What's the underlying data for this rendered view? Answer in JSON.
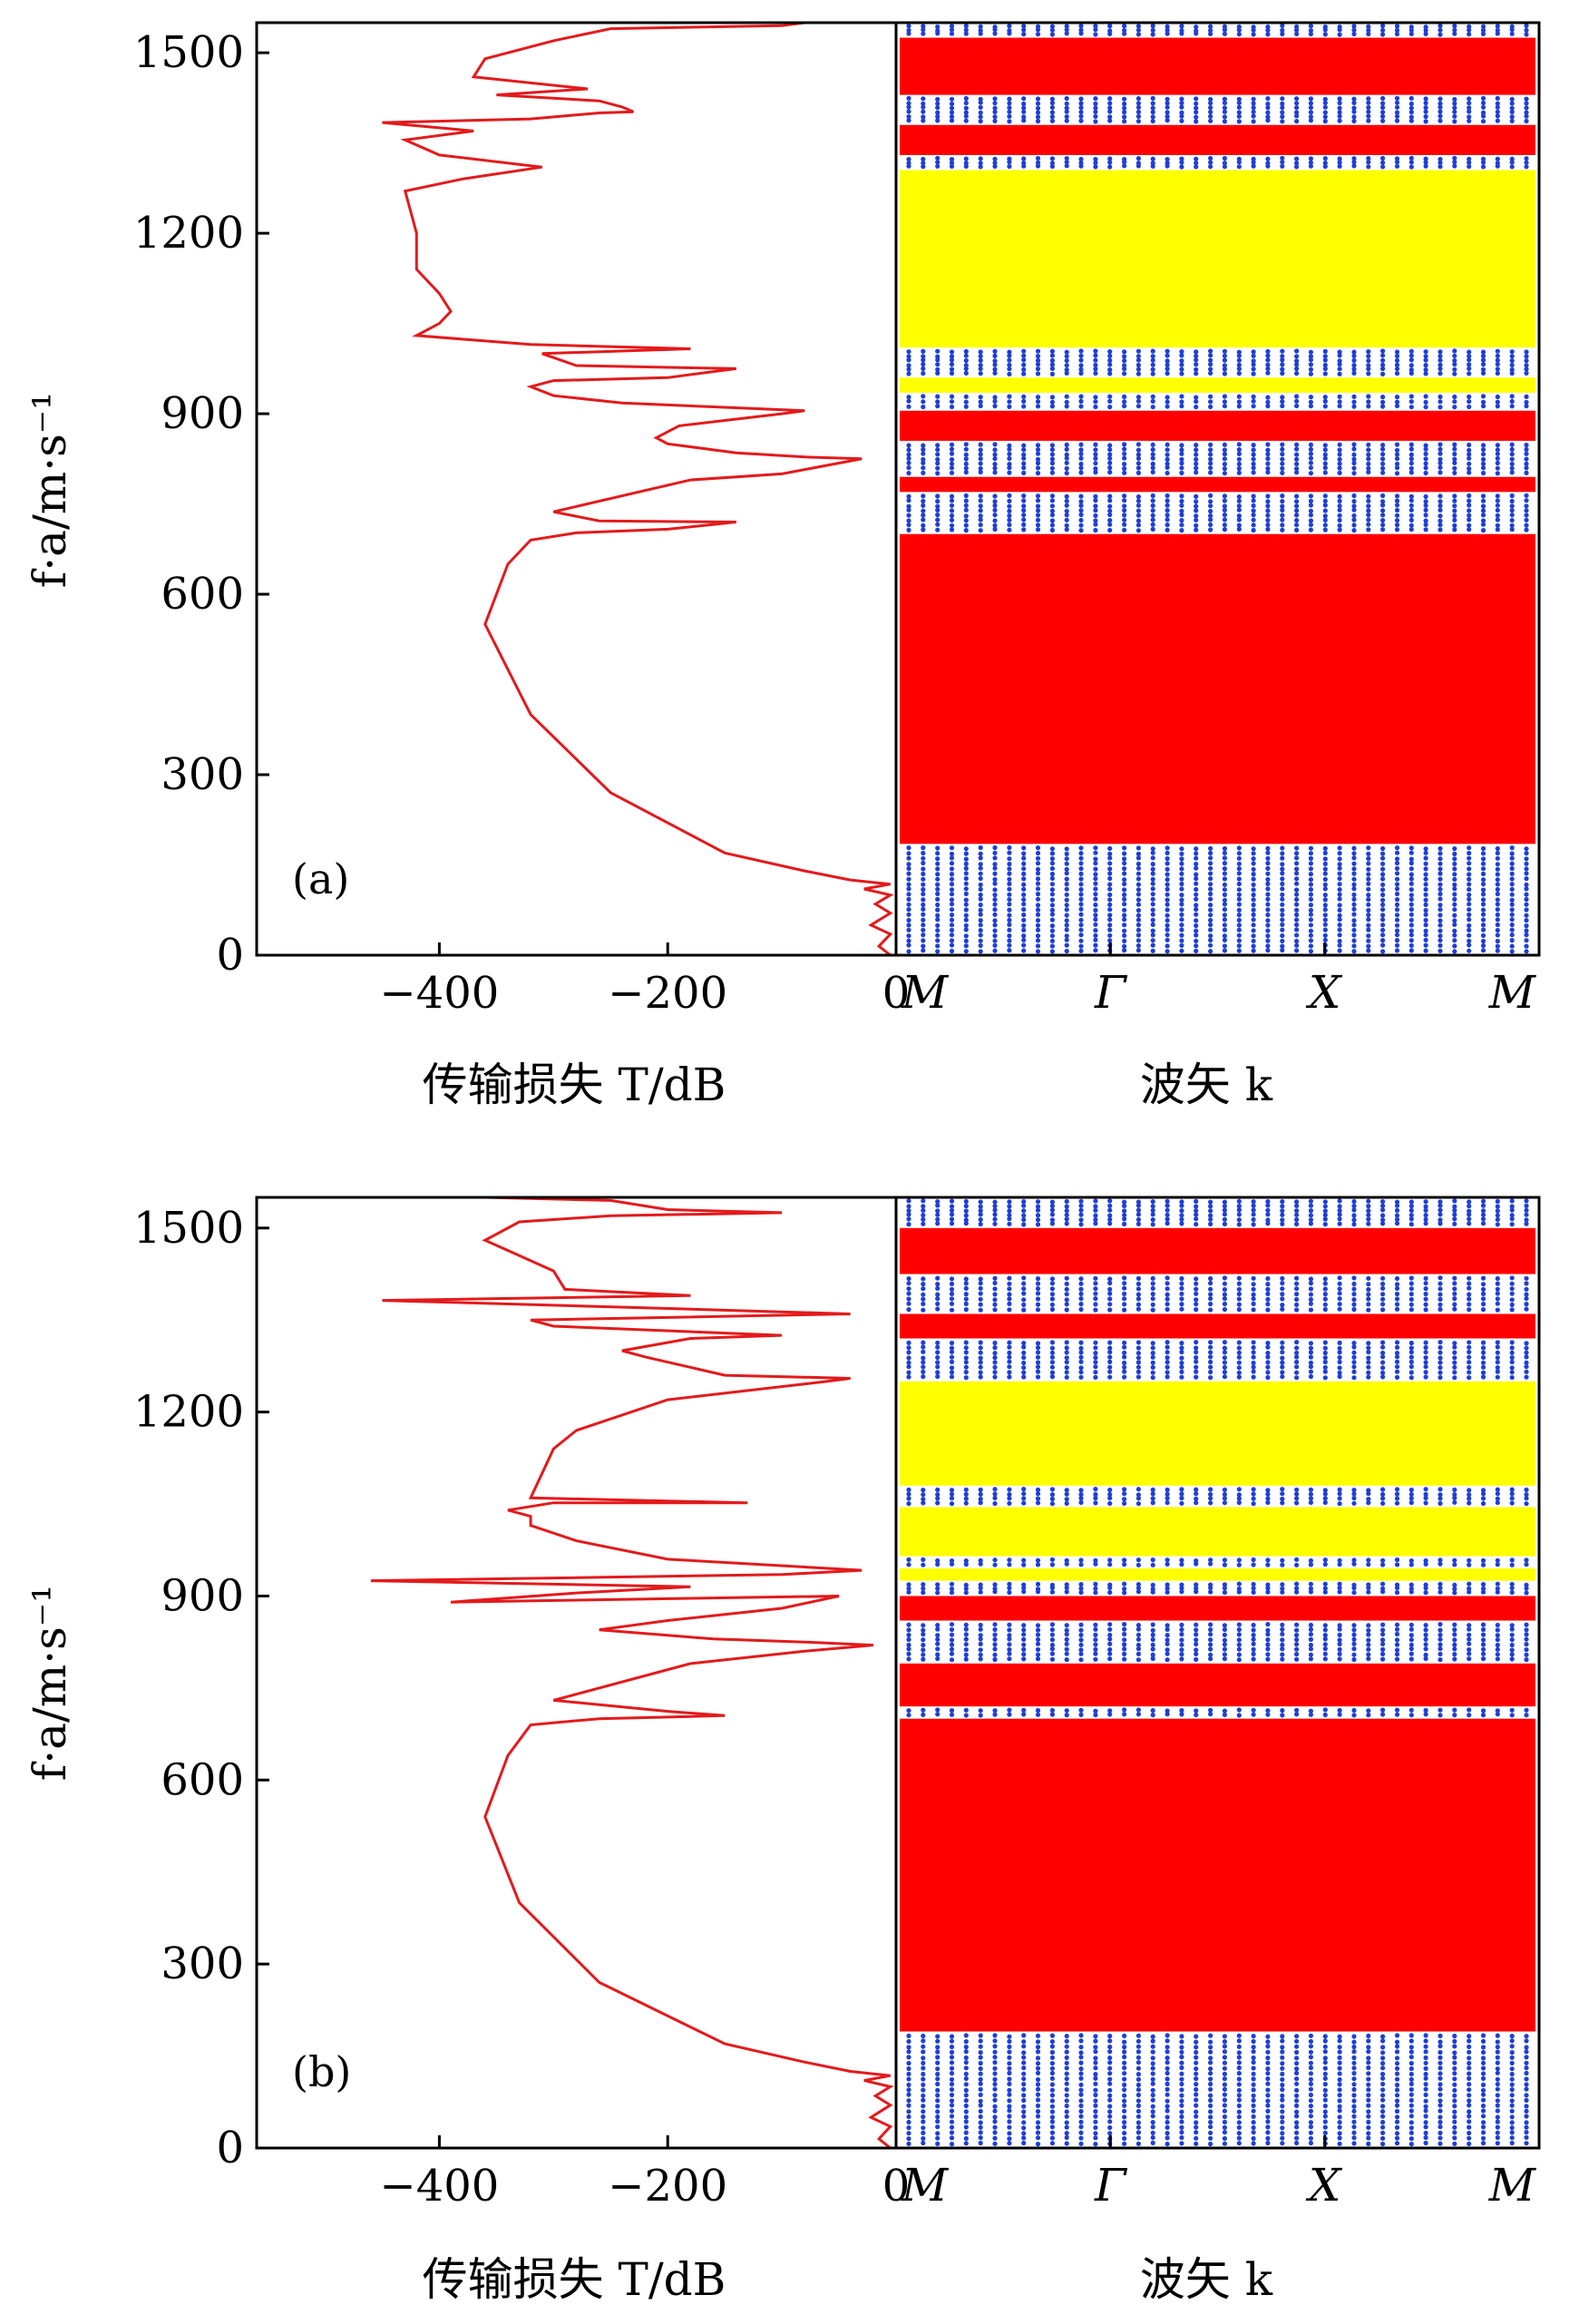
{
  "colors": {
    "transmission_line": "#e31a1c",
    "complete_band_gap": "#ff0000",
    "directional_gap": "#ffff00",
    "band_dots": "#1f3fd6",
    "axis": "#000000"
  },
  "chart_data": [
    {
      "panel": "a",
      "panel_label": "(a)",
      "type": "line",
      "left": {
        "xlabel": "传输损失 T/dB",
        "xlim": [
          -560,
          0
        ],
        "xticks": [
          -400,
          -200,
          0
        ],
        "xtick_labels": [
          "−400",
          "−200",
          "0"
        ],
        "series": [
          {
            "points": [
              [
                -5,
                0
              ],
              [
                -15,
                15
              ],
              [
                -5,
                35
              ],
              [
                -22,
                50
              ],
              [
                -5,
                70
              ],
              [
                -18,
                85
              ],
              [
                -5,
                100
              ],
              [
                -28,
                110
              ],
              [
                -5,
                118
              ],
              [
                -40,
                125
              ],
              [
                -80,
                140
              ],
              [
                -150,
                170
              ],
              [
                -250,
                270
              ],
              [
                -320,
                400
              ],
              [
                -360,
                550
              ],
              [
                -340,
                650
              ],
              [
                -320,
                690
              ],
              [
                -280,
                702
              ],
              [
                -200,
                708
              ],
              [
                -140,
                720
              ],
              [
                -260,
                722
              ],
              [
                -300,
                737
              ],
              [
                -180,
                790
              ],
              [
                -100,
                800
              ],
              [
                -50,
                818
              ],
              [
                -30,
                825
              ],
              [
                -80,
                828
              ],
              [
                -140,
                835
              ],
              [
                -200,
                850
              ],
              [
                -210,
                860
              ],
              [
                -190,
                880
              ],
              [
                -100,
                900
              ],
              [
                -80,
                905
              ],
              [
                -240,
                918
              ],
              [
                -300,
                930
              ],
              [
                -320,
                945
              ],
              [
                -300,
                955
              ],
              [
                -200,
                960
              ],
              [
                -140,
                975
              ],
              [
                -280,
                980
              ],
              [
                -310,
                1000
              ],
              [
                -180,
                1008
              ],
              [
                -320,
                1015
              ],
              [
                -420,
                1030
              ],
              [
                -400,
                1050
              ],
              [
                -390,
                1070
              ],
              [
                -400,
                1100
              ],
              [
                -420,
                1140
              ],
              [
                -420,
                1200
              ],
              [
                -430,
                1270
              ],
              [
                -380,
                1290
              ],
              [
                -310,
                1310
              ],
              [
                -400,
                1330
              ],
              [
                -430,
                1355
              ],
              [
                -370,
                1370
              ],
              [
                -450,
                1384
              ],
              [
                -320,
                1390
              ],
              [
                -260,
                1400
              ],
              [
                -230,
                1402
              ],
              [
                -240,
                1410
              ],
              [
                -260,
                1420
              ],
              [
                -350,
                1430
              ],
              [
                -270,
                1440
              ],
              [
                -370,
                1460
              ],
              [
                -360,
                1490
              ],
              [
                -300,
                1520
              ],
              [
                -250,
                1540
              ],
              [
                -100,
                1545
              ],
              [
                -80,
                1550
              ]
            ]
          }
        ]
      },
      "right": {
        "xlabel": "波矢 k",
        "kpoints": [
          "M",
          "Γ",
          "X",
          "M"
        ],
        "complete_gaps": [
          [
            185,
            700
          ],
          [
            770,
            795
          ],
          [
            855,
            905
          ],
          [
            1330,
            1380
          ],
          [
            1430,
            1525
          ]
        ],
        "directional_gaps": [
          [
            1010,
            1305
          ],
          [
            935,
            960
          ]
        ]
      },
      "ylabel": "f·a/m·s⁻¹",
      "ylim": [
        0,
        1550
      ],
      "yticks": [
        0,
        300,
        600,
        900,
        1200,
        1500
      ],
      "ytick_labels": [
        "0",
        "300",
        "600",
        "900",
        "1200",
        "1500"
      ]
    },
    {
      "panel": "b",
      "panel_label": "(b)",
      "type": "line",
      "left": {
        "xlabel": "传输损失 T/dB",
        "xlim": [
          -560,
          0
        ],
        "xticks": [
          -400,
          -200,
          0
        ],
        "xtick_labels": [
          "−400",
          "−200",
          "0"
        ],
        "series": [
          {
            "points": [
              [
                -5,
                0
              ],
              [
                -15,
                15
              ],
              [
                -5,
                35
              ],
              [
                -22,
                50
              ],
              [
                -5,
                70
              ],
              [
                -18,
                85
              ],
              [
                -5,
                100
              ],
              [
                -28,
                110
              ],
              [
                -5,
                118
              ],
              [
                -40,
                125
              ],
              [
                -80,
                140
              ],
              [
                -150,
                170
              ],
              [
                -260,
                270
              ],
              [
                -330,
                400
              ],
              [
                -360,
                540
              ],
              [
                -340,
                640
              ],
              [
                -320,
                690
              ],
              [
                -260,
                700
              ],
              [
                -150,
                705
              ],
              [
                -200,
                712
              ],
              [
                -300,
                730
              ],
              [
                -180,
                790
              ],
              [
                -80,
                810
              ],
              [
                -20,
                820
              ],
              [
                -80,
                825
              ],
              [
                -160,
                830
              ],
              [
                -260,
                845
              ],
              [
                -200,
                860
              ],
              [
                -100,
                880
              ],
              [
                -50,
                900
              ],
              [
                -390,
                890
              ],
              [
                -280,
                905
              ],
              [
                -180,
                915
              ],
              [
                -460,
                925
              ],
              [
                -100,
                935
              ],
              [
                -30,
                942
              ],
              [
                -200,
                960
              ],
              [
                -280,
                990
              ],
              [
                -320,
                1015
              ],
              [
                -320,
                1030
              ],
              [
                -340,
                1040
              ],
              [
                -300,
                1052
              ],
              [
                -130,
                1052
              ],
              [
                -320,
                1060
              ],
              [
                -310,
                1100
              ],
              [
                -300,
                1140
              ],
              [
                -280,
                1170
              ],
              [
                -200,
                1220
              ],
              [
                -60,
                1250
              ],
              [
                -40,
                1255
              ],
              [
                -150,
                1260
              ],
              [
                -220,
                1290
              ],
              [
                -240,
                1300
              ],
              [
                -180,
                1320
              ],
              [
                -100,
                1325
              ],
              [
                -300,
                1340
              ],
              [
                -320,
                1350
              ],
              [
                -40,
                1360
              ],
              [
                -220,
                1370
              ],
              [
                -450,
                1382
              ],
              [
                -180,
                1390
              ],
              [
                -290,
                1400
              ],
              [
                -300,
                1430
              ],
              [
                -360,
                1480
              ],
              [
                -330,
                1510
              ],
              [
                -250,
                1520
              ],
              [
                -100,
                1525
              ],
              [
                -200,
                1530
              ],
              [
                -250,
                1545
              ],
              [
                -360,
                1550
              ]
            ]
          }
        ]
      },
      "right": {
        "xlabel": "波矢 k",
        "kpoints": [
          "M",
          "Γ",
          "X",
          "M"
        ],
        "complete_gaps": [
          [
            190,
            700
          ],
          [
            720,
            790
          ],
          [
            860,
            900
          ],
          [
            1320,
            1360
          ],
          [
            1425,
            1500
          ]
        ],
        "directional_gaps": [
          [
            1080,
            1250
          ],
          [
            965,
            1045
          ],
          [
            925,
            945
          ]
        ]
      },
      "ylabel": "f·a/m·s⁻¹",
      "ylim": [
        0,
        1550
      ],
      "yticks": [
        0,
        300,
        600,
        900,
        1200,
        1500
      ],
      "ytick_labels": [
        "0",
        "300",
        "600",
        "900",
        "1200",
        "1500"
      ]
    }
  ]
}
